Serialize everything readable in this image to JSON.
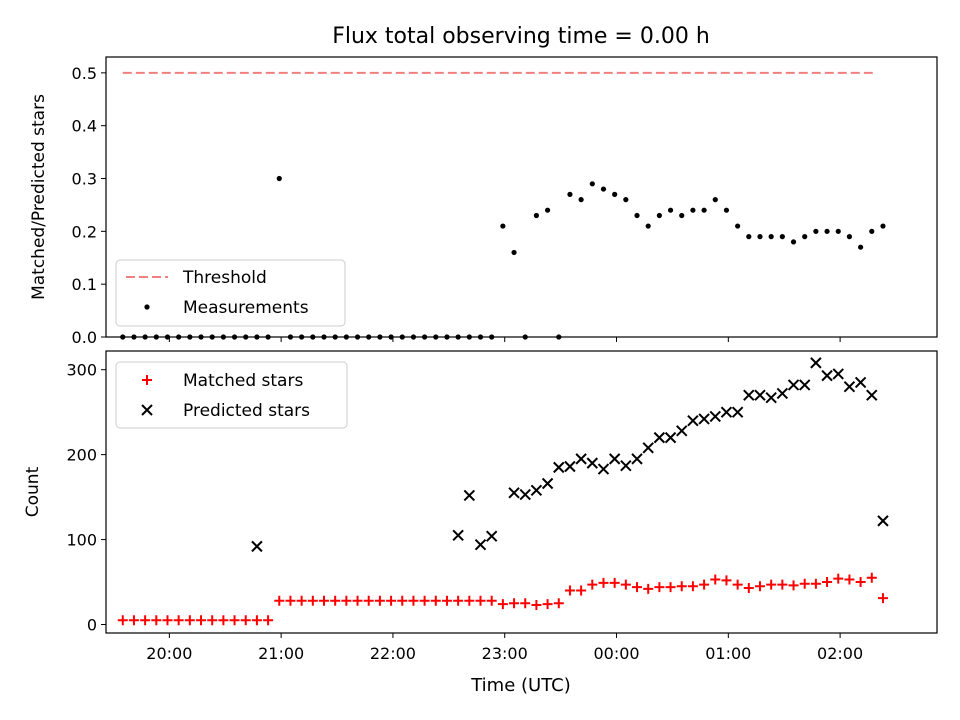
{
  "figure": {
    "title": "Flux total observing time = 0.00 h",
    "xlabel": "Time (UTC)"
  },
  "chart_data": [
    {
      "type": "scatter",
      "ylabel": "Matched/Predicted stars",
      "ylim": [
        0,
        0.53
      ],
      "yticks": [
        "0.0",
        "0.1",
        "0.2",
        "0.3",
        "0.4",
        "0.5"
      ],
      "x_ticks": [
        "20:00",
        "21:00",
        "22:00",
        "23:00",
        "00:00",
        "01:00",
        "02:00"
      ],
      "legend": {
        "position": "lower-left",
        "entries": [
          "Threshold",
          "Measurements"
        ]
      },
      "threshold": {
        "name": "Threshold",
        "value": 0.5,
        "color": "#f08080",
        "x_range": [
          "19:35",
          "02:18"
        ]
      },
      "measurements": {
        "name": "Measurements",
        "color": "#000000",
        "x": [
          "19:35",
          "19:41",
          "19:47",
          "19:53",
          "19:59",
          "20:05",
          "20:11",
          "20:17",
          "20:23",
          "20:29",
          "20:35",
          "20:41",
          "20:47",
          "20:53",
          "20:59",
          "21:05",
          "21:11",
          "21:17",
          "21:23",
          "21:29",
          "21:35",
          "21:41",
          "21:47",
          "21:53",
          "21:59",
          "22:05",
          "22:11",
          "22:17",
          "22:23",
          "22:29",
          "22:35",
          "22:41",
          "22:47",
          "22:53",
          "22:59",
          "23:05",
          "23:11",
          "23:17",
          "23:23",
          "23:29",
          "23:35",
          "23:41",
          "23:47",
          "23:53",
          "23:59",
          "00:05",
          "00:11",
          "00:17",
          "00:23",
          "00:29",
          "00:35",
          "00:41",
          "00:47",
          "00:53",
          "00:59",
          "01:05",
          "01:11",
          "01:17",
          "01:23",
          "01:29",
          "01:35",
          "01:41",
          "01:47",
          "01:53",
          "01:59",
          "02:05",
          "02:11",
          "02:17",
          "02:23"
        ],
        "y": [
          0,
          0,
          0,
          0,
          0,
          0,
          0,
          0,
          0,
          0,
          0,
          0,
          0,
          0,
          0.3,
          0,
          0,
          0,
          0,
          0,
          0,
          0,
          0,
          0,
          0,
          0,
          0,
          0,
          0,
          0,
          0,
          0,
          0,
          0,
          0.21,
          0.16,
          0,
          0.23,
          0.24,
          0,
          0.27,
          0.26,
          0.29,
          0.28,
          0.27,
          0.26,
          0.23,
          0.21,
          0.23,
          0.24,
          0.23,
          0.24,
          0.24,
          0.26,
          0.24,
          0.21,
          0.19,
          0.19,
          0.19,
          0.19,
          0.18,
          0.19,
          0.2,
          0.2,
          0.2,
          0.19,
          0.17,
          0.2,
          0.21
        ]
      }
    },
    {
      "type": "scatter",
      "ylabel": "Count",
      "ylim": [
        -10,
        322
      ],
      "yticks": [
        "0",
        "100",
        "200",
        "300"
      ],
      "x_ticks": [
        "20:00",
        "21:00",
        "22:00",
        "23:00",
        "00:00",
        "01:00",
        "02:00"
      ],
      "legend": {
        "position": "upper-left",
        "entries": [
          "Matched stars",
          "Predicted stars"
        ]
      },
      "series": [
        {
          "name": "Matched stars",
          "marker": "plus",
          "color": "#ff0000",
          "x": [
            "19:35",
            "19:41",
            "19:47",
            "19:53",
            "19:59",
            "20:05",
            "20:11",
            "20:17",
            "20:23",
            "20:29",
            "20:35",
            "20:41",
            "20:47",
            "20:53",
            "20:59",
            "21:05",
            "21:11",
            "21:17",
            "21:23",
            "21:29",
            "21:35",
            "21:41",
            "21:47",
            "21:53",
            "21:59",
            "22:05",
            "22:11",
            "22:17",
            "22:23",
            "22:29",
            "22:35",
            "22:41",
            "22:47",
            "22:53",
            "22:59",
            "23:05",
            "23:11",
            "23:17",
            "23:23",
            "23:29",
            "23:35",
            "23:41",
            "23:47",
            "23:53",
            "23:59",
            "00:05",
            "00:11",
            "00:17",
            "00:23",
            "00:29",
            "00:35",
            "00:41",
            "00:47",
            "00:53",
            "00:59",
            "01:05",
            "01:11",
            "01:17",
            "01:23",
            "01:29",
            "01:35",
            "01:41",
            "01:47",
            "01:53",
            "01:59",
            "02:05",
            "02:11",
            "02:17",
            "02:23"
          ],
          "y": [
            5,
            5,
            5,
            5,
            5,
            5,
            5,
            5,
            5,
            5,
            5,
            5,
            5,
            5,
            28,
            28,
            28,
            28,
            28,
            28,
            28,
            28,
            28,
            28,
            28,
            28,
            28,
            28,
            28,
            28,
            28,
            28,
            28,
            28,
            24,
            25,
            25,
            23,
            24,
            25,
            40,
            40,
            47,
            49,
            49,
            47,
            44,
            42,
            44,
            44,
            45,
            45,
            47,
            53,
            52,
            47,
            43,
            45,
            47,
            47,
            46,
            48,
            48,
            50,
            54,
            53,
            50,
            55,
            31
          ]
        },
        {
          "name": "Predicted stars",
          "marker": "x",
          "color": "#000000",
          "x": [
            "20:47",
            "22:35",
            "22:41",
            "22:47",
            "22:53",
            "23:05",
            "23:11",
            "23:17",
            "23:23",
            "23:29",
            "23:35",
            "23:41",
            "23:47",
            "23:53",
            "23:59",
            "00:05",
            "00:11",
            "00:17",
            "00:23",
            "00:29",
            "00:35",
            "00:41",
            "00:47",
            "00:53",
            "00:59",
            "01:05",
            "01:11",
            "01:17",
            "01:23",
            "01:29",
            "01:35",
            "01:41",
            "01:47",
            "01:53",
            "01:59",
            "02:05",
            "02:11",
            "02:17",
            "02:23"
          ],
          "y": [
            92,
            105,
            152,
            94,
            104,
            155,
            153,
            158,
            166,
            185,
            186,
            195,
            190,
            183,
            195,
            187,
            195,
            208,
            220,
            220,
            228,
            240,
            242,
            245,
            250,
            250,
            270,
            270,
            267,
            272,
            282,
            282,
            308,
            293,
            295,
            280,
            285,
            270,
            122
          ]
        }
      ]
    }
  ]
}
